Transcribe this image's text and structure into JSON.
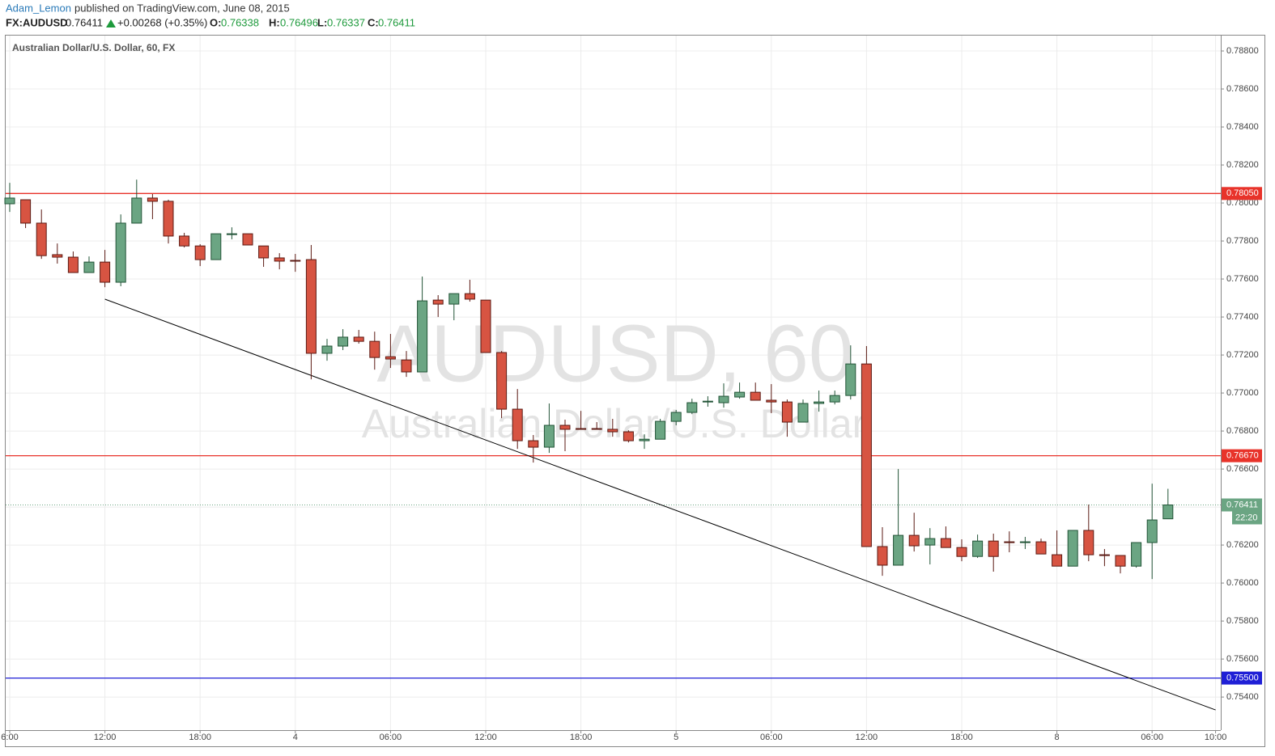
{
  "header": {
    "author": "Adam_Lemon",
    "published": "published on TradingView.com, June 08, 2015",
    "symbol": "FX:AUDUSD",
    "change": "+0.00268 (+0.35%)",
    "open_label": "O:",
    "high_label": "H:",
    "low_label": "L:",
    "close_label": "C:"
  },
  "chart_data": {
    "type": "candlestick",
    "title": "Australian Dollar/U.S. Dollar, 60, FX",
    "watermark": [
      "AUDUSD, 60",
      "Australian Dollar/U.S. Dollar"
    ],
    "x": [
      "6:00",
      null,
      null,
      null,
      null,
      null,
      "12:00",
      null,
      null,
      null,
      null,
      null,
      "18:00",
      null,
      null,
      null,
      null,
      null,
      "4",
      null,
      null,
      null,
      null,
      null,
      "06:00",
      null,
      null,
      null,
      null,
      null,
      "12:00",
      null,
      null,
      null,
      null,
      null,
      "18:00",
      null,
      null,
      null,
      null,
      null,
      "5",
      null,
      null,
      null,
      null,
      null,
      "06:00",
      null,
      null,
      null,
      null,
      null,
      "12:00",
      null,
      null,
      null,
      null,
      null,
      "18:00",
      null,
      null,
      null,
      null,
      null,
      "8",
      null,
      null,
      null,
      null,
      null,
      "06:00",
      null,
      null,
      null,
      "10:00"
    ],
    "open": [
      0.77996,
      0.78017,
      0.77894,
      0.77728,
      0.77715,
      0.77634,
      0.77689,
      0.77583,
      0.77894,
      0.78026,
      0.78009,
      0.77826,
      0.77774,
      0.77702,
      0.77834,
      0.77838,
      0.77774,
      0.77711,
      0.77698,
      0.77702,
      0.77209,
      0.77247,
      0.77294,
      0.77272,
      0.77191,
      0.77174,
      0.77111,
      0.77489,
      0.77468,
      0.77523,
      0.77489,
      0.77213,
      0.76915,
      0.76749,
      0.76715,
      0.7683,
      0.76813,
      0.76813,
      0.76809,
      0.76796,
      0.76749,
      0.76757,
      0.76851,
      0.76898,
      0.76953,
      0.76949,
      0.76979,
      0.77004,
      0.76962,
      0.76953,
      0.76847,
      0.76945,
      0.76953,
      0.76987,
      0.77153,
      0.76192,
      0.76094,
      0.76251,
      0.762,
      0.76234,
      0.76187,
      0.7614,
      0.76221,
      0.76217,
      0.76213,
      0.76217,
      0.76149,
      0.76089,
      0.76277,
      0.76149,
      0.76145,
      0.76089,
      0.76213,
      0.76338,
      null,
      null,
      null
    ],
    "high": [
      0.78106,
      0.78017,
      0.77966,
      0.77787,
      0.77745,
      0.77719,
      0.77753,
      0.7794,
      0.78123,
      0.78047,
      0.78017,
      0.77843,
      0.77783,
      0.77838,
      0.77872,
      0.77838,
      0.77774,
      0.77736,
      0.77732,
      0.77779,
      0.77285,
      0.77336,
      0.77332,
      0.77323,
      0.77311,
      0.77221,
      0.77613,
      0.77515,
      0.77523,
      0.77596,
      0.77489,
      0.77221,
      0.77021,
      0.76779,
      0.76945,
      0.7686,
      0.76906,
      0.76847,
      0.76864,
      0.76804,
      0.76783,
      0.76864,
      0.76911,
      0.7697,
      0.76983,
      0.77051,
      0.77055,
      0.77055,
      0.77047,
      0.76966,
      0.76966,
      0.77013,
      0.77013,
      0.77251,
      0.77247,
      0.76294,
      0.766,
      0.7637,
      0.76289,
      0.76298,
      0.7623,
      0.76255,
      0.7626,
      0.76272,
      0.76243,
      0.76234,
      0.76277,
      0.76277,
      0.76413,
      0.76179,
      0.76145,
      0.76213,
      0.76523,
      0.76496,
      null,
      null,
      null
    ],
    "low": [
      0.77953,
      0.77868,
      0.77706,
      0.77681,
      0.77634,
      0.77634,
      0.77557,
      0.77562,
      0.77894,
      0.77915,
      0.77787,
      0.77766,
      0.77668,
      0.77702,
      0.77809,
      0.77779,
      0.77664,
      0.77651,
      0.77638,
      0.77072,
      0.7717,
      0.77226,
      0.7726,
      0.77123,
      0.77132,
      0.77085,
      0.77111,
      0.774,
      0.77383,
      0.77481,
      0.77213,
      0.76868,
      0.76706,
      0.76634,
      0.76685,
      0.76694,
      0.76809,
      0.76809,
      0.7677,
      0.7674,
      0.76706,
      0.76757,
      0.7683,
      0.76889,
      0.76928,
      0.76923,
      0.7697,
      0.76962,
      0.76894,
      0.7677,
      0.76847,
      0.76902,
      0.7694,
      0.76966,
      0.76192,
      0.76038,
      0.76094,
      0.76166,
      0.76098,
      0.76187,
      0.76115,
      0.76132,
      0.7606,
      0.76162,
      0.76179,
      0.76153,
      0.76089,
      0.76089,
      0.76115,
      0.76089,
      0.76051,
      0.76081,
      0.76021,
      0.76337,
      null,
      null,
      null
    ],
    "close": [
      0.78026,
      0.77894,
      0.77723,
      0.77715,
      0.77634,
      0.77689,
      0.77583,
      0.77894,
      0.78026,
      0.78009,
      0.77826,
      0.77774,
      0.77702,
      0.77838,
      0.77838,
      0.77779,
      0.77711,
      0.77694,
      0.77694,
      0.77209,
      0.77247,
      0.77294,
      0.77272,
      0.77187,
      0.77179,
      0.77111,
      0.77485,
      0.77468,
      0.77523,
      0.77494,
      0.77213,
      0.76915,
      0.76749,
      0.76715,
      0.7683,
      0.76809,
      0.76809,
      0.76809,
      0.76796,
      0.76749,
      0.76757,
      0.76851,
      0.76898,
      0.76949,
      0.76957,
      0.76983,
      0.77004,
      0.76962,
      0.76953,
      0.76847,
      0.76945,
      0.76953,
      0.76987,
      0.77153,
      0.76192,
      0.76094,
      0.76251,
      0.76196,
      0.76234,
      0.76187,
      0.7614,
      0.76221,
      0.7614,
      0.76213,
      0.76217,
      0.76153,
      0.76089,
      0.76277,
      0.76149,
      0.76145,
      0.76089,
      0.76213,
      0.76332,
      0.76411,
      null,
      null,
      null
    ],
    "up_color": "#6ba583",
    "down_color": "#d75442",
    "up_border": "#225437",
    "down_border": "#5b1a13",
    "ylim": [
      0.75226,
      0.78881
    ],
    "yticks": [
      {
        "value": 0.754,
        "label": "0.75400"
      },
      {
        "value": 0.756,
        "label": "0.75600"
      },
      {
        "value": 0.758,
        "label": "0.75800"
      },
      {
        "value": 0.76,
        "label": "0.76000"
      },
      {
        "value": 0.762,
        "label": "0.76200"
      },
      {
        "value": 0.764,
        "label": "0.76400"
      },
      {
        "value": 0.766,
        "label": "0.76600"
      },
      {
        "value": 0.768,
        "label": "0.76800"
      },
      {
        "value": 0.77,
        "label": "0.77000"
      },
      {
        "value": 0.772,
        "label": "0.77200"
      },
      {
        "value": 0.774,
        "label": "0.77400"
      },
      {
        "value": 0.776,
        "label": "0.77600"
      },
      {
        "value": 0.778,
        "label": "0.77800"
      },
      {
        "value": 0.78,
        "label": "0.78000"
      },
      {
        "value": 0.782,
        "label": "0.78200"
      },
      {
        "value": 0.784,
        "label": "0.78400"
      },
      {
        "value": 0.786,
        "label": "0.78600"
      },
      {
        "value": 0.788,
        "label": "0.78800"
      }
    ],
    "grid": true,
    "hlines": [
      {
        "value": 0.7805,
        "label": "0.78050",
        "color": "#e8332a"
      },
      {
        "value": 0.7667,
        "label": "0.76670",
        "color": "#e8332a"
      },
      {
        "value": 0.755,
        "label": "0.75500",
        "color": "#1f1fd6"
      }
    ],
    "trendline": {
      "x": [
        6,
        76
      ],
      "y": [
        0.77494,
        0.75332
      ],
      "color": "#000000"
    },
    "countdown": "22:20"
  }
}
